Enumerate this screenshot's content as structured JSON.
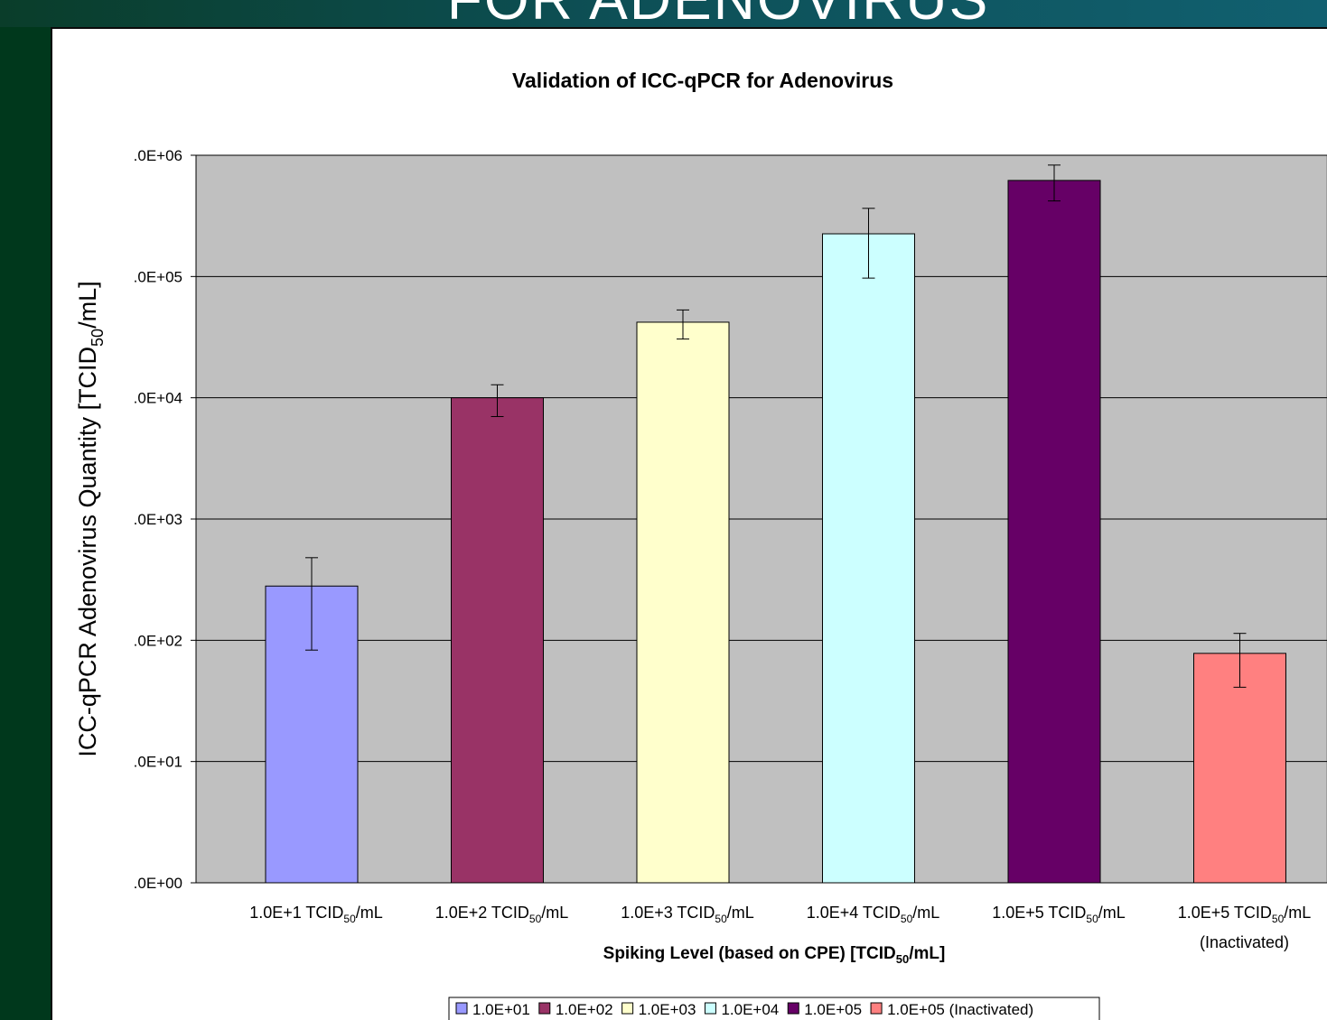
{
  "slide": {
    "title_fragment": "FOR ADENOVIRUS"
  },
  "chart_data": {
    "type": "bar",
    "title": "Validation of ICC-qPCR for Adenovirus",
    "ylabel": {
      "main": "ICC-qPCR Adenovirus Quantity [TCID",
      "sub": "50",
      "tail": "/mL]"
    },
    "xlabel": {
      "main": "Spiking Level (based on CPE) [TCID",
      "sub": "50",
      "tail": "/mL]"
    },
    "yscale": "log",
    "ylim": [
      1,
      1000000
    ],
    "yticks": [
      {
        "value": 1,
        "label": ".0E+00"
      },
      {
        "value": 10,
        "label": ".0E+01"
      },
      {
        "value": 100,
        "label": ".0E+02"
      },
      {
        "value": 1000,
        "label": ".0E+03"
      },
      {
        "value": 10000,
        "label": ".0E+04"
      },
      {
        "value": 100000,
        "label": ".0E+05"
      },
      {
        "value": 1000000,
        "label": ".0E+06"
      }
    ],
    "grid": true,
    "legend_position": "bottom",
    "plot_background": "#c0c0c0",
    "categories": [
      {
        "main": "1.0E+1 TCID",
        "sub": "50",
        "tail": "/mL",
        "line2": ""
      },
      {
        "main": "1.0E+2 TCID",
        "sub": "50",
        "tail": "/mL",
        "line2": ""
      },
      {
        "main": "1.0E+3 TCID",
        "sub": "50",
        "tail": "/mL",
        "line2": ""
      },
      {
        "main": "1.0E+4 TCID",
        "sub": "50",
        "tail": "/mL",
        "line2": ""
      },
      {
        "main": "1.0E+5 TCID",
        "sub": "50",
        "tail": "/mL",
        "line2": ""
      },
      {
        "main": "1.0E+5 TCID",
        "sub": "50",
        "tail": "/mL",
        "line2": "(Inactivated)"
      }
    ],
    "series": [
      {
        "name": "1.0E+01",
        "value": 280,
        "err_low": 83,
        "err_high": 480,
        "color": "#9999ff"
      },
      {
        "name": "1.0E+02",
        "value": 10000,
        "err_low": 7000,
        "err_high": 12800,
        "color": "#993366"
      },
      {
        "name": "1.0E+03",
        "value": 42000,
        "err_low": 30500,
        "err_high": 53000,
        "color": "#ffffcc"
      },
      {
        "name": "1.0E+04",
        "value": 225000,
        "err_low": 97000,
        "err_high": 365000,
        "color": "#ccffff"
      },
      {
        "name": "1.0E+05",
        "value": 620000,
        "err_low": 420000,
        "err_high": 830000,
        "color": "#660066"
      },
      {
        "name": "1.0E+05 (Inactivated)",
        "value": 78,
        "err_low": 41,
        "err_high": 114,
        "color": "#ff8080"
      }
    ]
  }
}
